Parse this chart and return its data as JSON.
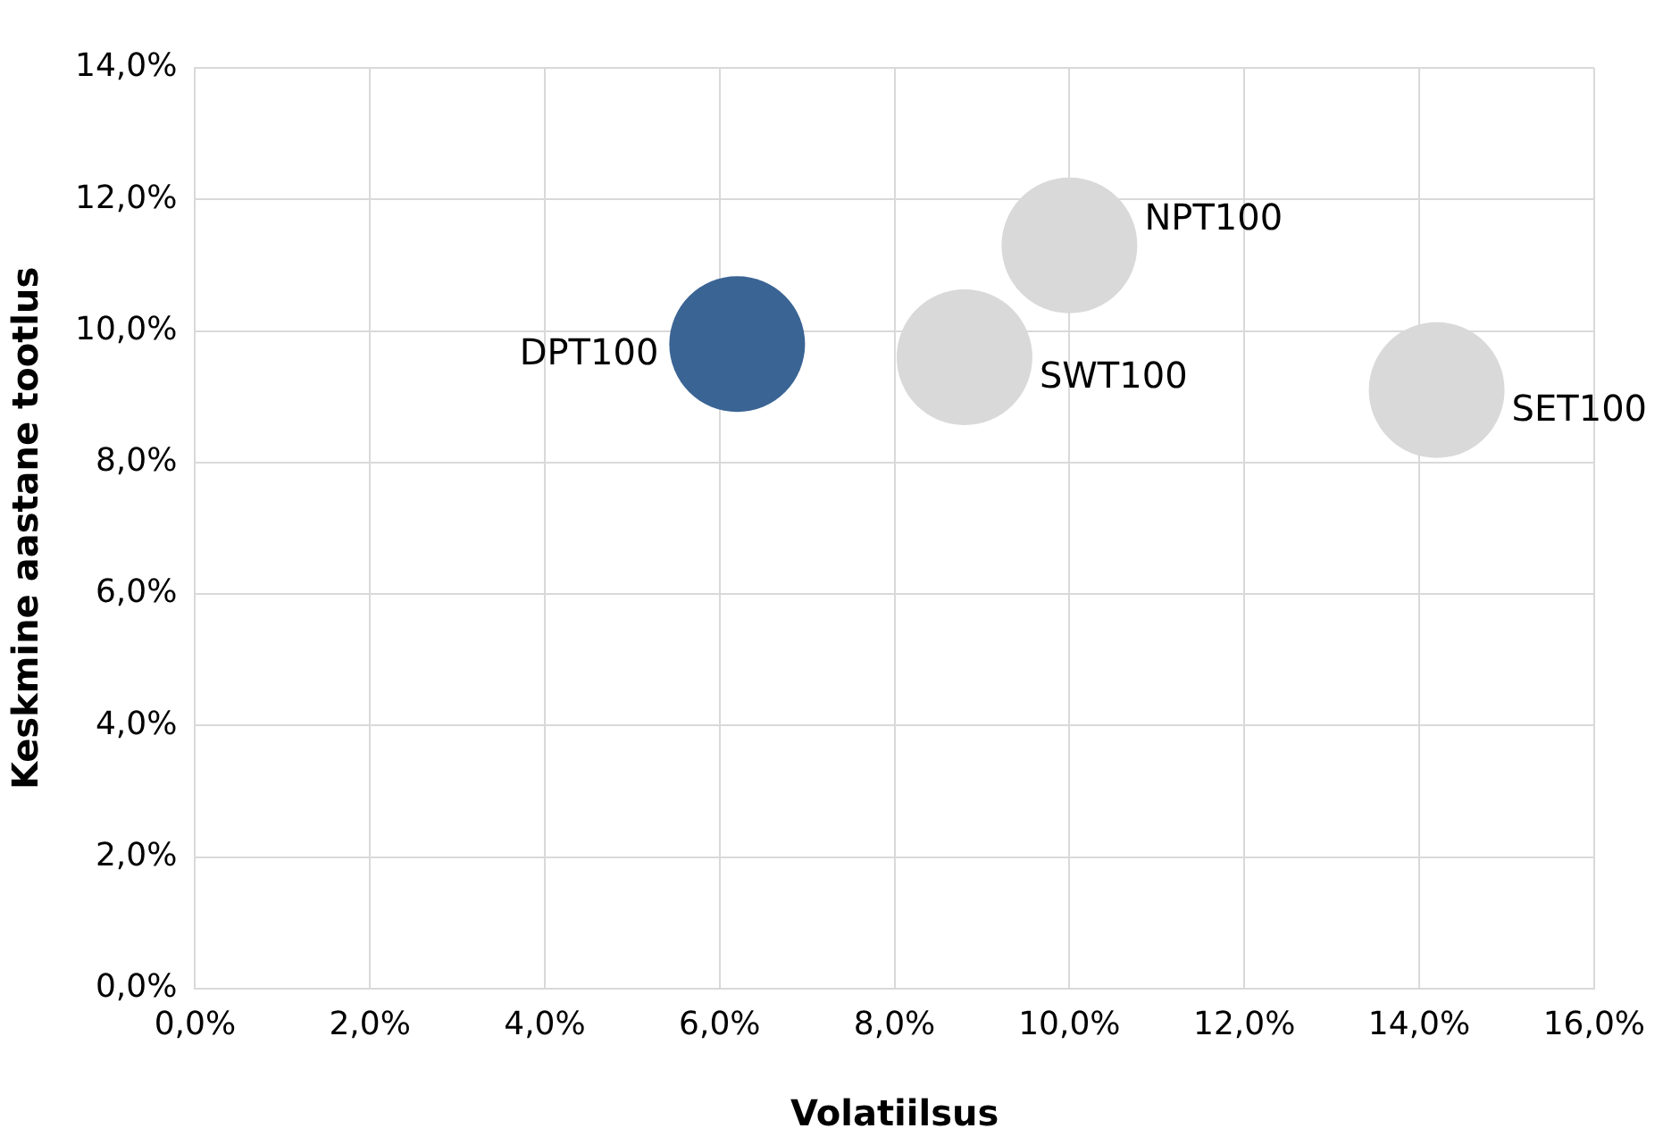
{
  "chart_data": {
    "type": "bubble",
    "xlabel": "Volatiilsus",
    "ylabel": "Keskmine aastane tootlus",
    "series": [
      {
        "name": "DPT100",
        "color": "#3a6494",
        "x": [
          6.2
        ],
        "values": [
          9.8
        ],
        "sizes": [
          1
        ]
      },
      {
        "name": "SWT100",
        "color": "#d9d9d9",
        "x": [
          8.8
        ],
        "values": [
          9.6
        ],
        "sizes": [
          1
        ]
      },
      {
        "name": "NPT100",
        "color": "#d9d9d9",
        "x": [
          10.0
        ],
        "values": [
          11.3
        ],
        "sizes": [
          1
        ]
      },
      {
        "name": "SET100",
        "color": "#d9d9d9",
        "x": [
          14.2
        ],
        "values": [
          9.1
        ],
        "sizes": [
          1
        ]
      }
    ],
    "xlim": [
      0,
      16
    ],
    "xticks": [
      {
        "value": 0,
        "label": "0,0%"
      },
      {
        "value": 2,
        "label": "2,0%"
      },
      {
        "value": 4,
        "label": "4,0%"
      },
      {
        "value": 6,
        "label": "6,0%"
      },
      {
        "value": 8,
        "label": "8,0%"
      },
      {
        "value": 10,
        "label": "10,0%"
      },
      {
        "value": 12,
        "label": "12,0%"
      },
      {
        "value": 14,
        "label": "14,0%"
      },
      {
        "value": 16,
        "label": "16,0%"
      }
    ],
    "ylim": [
      0,
      14
    ],
    "yticks": [
      {
        "value": 0,
        "label": "0,0%"
      },
      {
        "value": 2,
        "label": "2,0%"
      },
      {
        "value": 4,
        "label": "4,0%"
      },
      {
        "value": 6,
        "label": "6,0%"
      },
      {
        "value": 8,
        "label": "8,0%"
      },
      {
        "value": 10,
        "label": "10,0%"
      },
      {
        "value": 12,
        "label": "12,0%"
      },
      {
        "value": 14,
        "label": "14,0%"
      }
    ],
    "grid": true,
    "legend": false
  }
}
